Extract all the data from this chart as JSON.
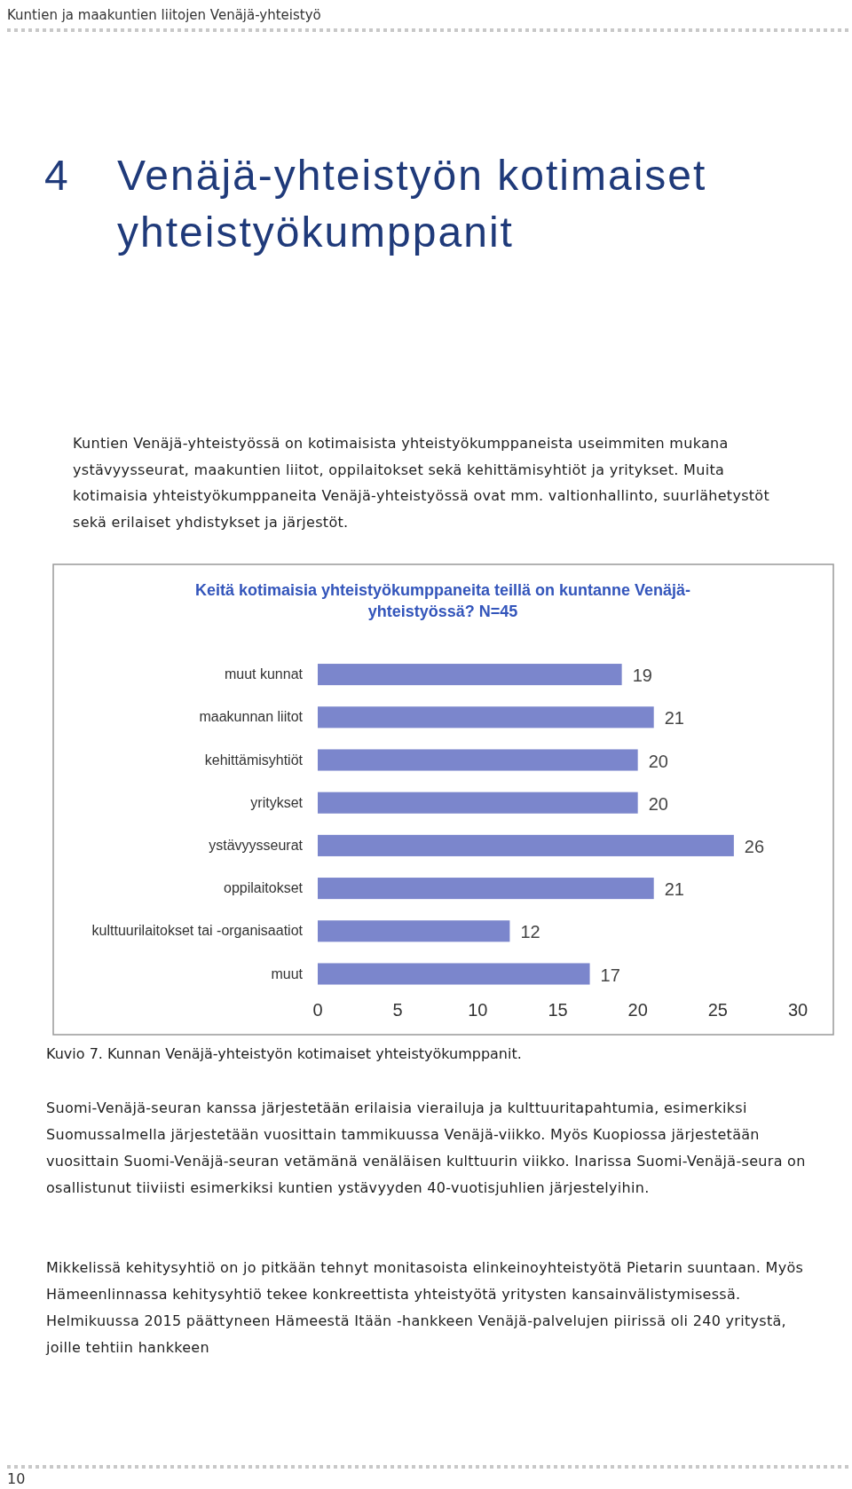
{
  "chart_data": {
    "type": "bar",
    "orientation": "horizontal",
    "title": "Keitä kotimaisia yhteistyökumppaneita teillä on kuntanne Venäjä-yhteistyössä? N=45",
    "categories": [
      "muut kunnat",
      "maakunnan liitot",
      "kehittämisyhtiöt",
      "yritykset",
      "ystävyysseurat",
      "oppilaitokset",
      "kulttuurilaitokset tai -organisaatiot",
      "muut"
    ],
    "values": [
      19,
      21,
      20,
      20,
      26,
      21,
      12,
      17
    ],
    "color": "#7b86cc",
    "data_labels": true,
    "xlim": [
      0,
      30
    ],
    "xticks": [
      0,
      5,
      10,
      15,
      20,
      25,
      30
    ],
    "grid": false,
    "annotations": [
      "Kuntien ja maakuntien liitojen Venäjä-yhteistyö",
      "4",
      "Venäjä-yhteistyön kotimaiset yhteistyökumppanit",
      "Kuntien Venäjä-yhteistyössä on kotimaisista yhteistyökumppaneista useimmiten mukana ystävyysseurat, maakuntien liitot, oppilaitokset sekä kehittämisyhtiöt ja yritykset. Muita kotimaisia yhteistyökumppaneita Venäjä-yhteistyössä ovat mm. valtionhallinto, suurlähetystöt sekä erilaiset yhdistykset ja järjestöt.",
      "Kuvio 7. Kunnan Venäjä-yhteistyön kotimaiset yhteistyökumppanit.",
      "Suomi-Venäjä-seuran kanssa järjestetään erilaisia vierailuja ja kulttuuritapahtumia, esimerkiksi Suomussalmella järjestetään vuosittain tammikuussa Venäjä-viikko. Myös Kuopiossa järjestetään vuosittain Suomi-Venäjä-seuran vetämänä venäläisen kulttuurin viikko. Inarissa Suomi-Venäjä-seura on osallistunut tiiviisti esimerkiksi kuntien ystävyyden 40-vuotisjuhlien järjestelyihin.",
      "Mikkelissä kehitysyhtiö on jo pitkään tehnyt monitasoista elinkeinoyhteistyötä Pietarin suuntaan. Myös Hämeenlinnassa kehitysyhtiö tekee konkreettista yhteistyötä yritysten kansainvälistymisessä. Helmikuussa 2015 päättyneen Hämeestä Itään -hankkeen Venäjä-palvelujen piirissä oli 240 yritystä, joille tehtiin hankkeen",
      "10"
    ]
  }
}
